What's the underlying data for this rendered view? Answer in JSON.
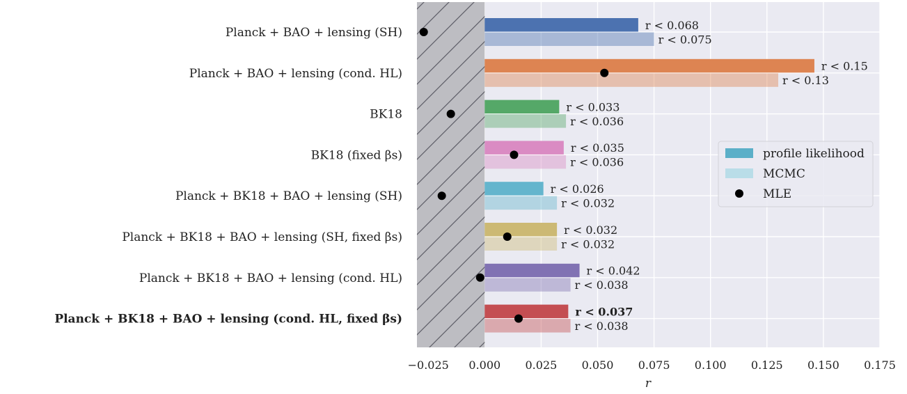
{
  "chart_data": {
    "type": "bar",
    "orientation": "horizontal",
    "xlabel": "r",
    "xlim": [
      -0.03,
      0.175
    ],
    "xticks": [
      -0.025,
      0.0,
      0.025,
      0.05,
      0.075,
      0.1,
      0.125,
      0.15,
      0.175
    ],
    "xtick_labels": [
      "−0.025",
      "0.000",
      "0.025",
      "0.050",
      "0.075",
      "0.100",
      "0.125",
      "0.150",
      "0.175"
    ],
    "excluded_region": [
      -0.03,
      0.0
    ],
    "grid": true,
    "legend_position": "center-right",
    "legend": [
      {
        "label": "profile likelihood",
        "kind": "bar",
        "color": "#5bafc8"
      },
      {
        "label": "MCMC",
        "kind": "bar",
        "color": "#b9dde8"
      },
      {
        "label": "MLE",
        "kind": "dot",
        "color": "#000000"
      }
    ],
    "rows": [
      {
        "label": "Planck + BAO + lensing (SH)",
        "bold": false,
        "color": "#4c72b0",
        "profile_limit": 0.068,
        "profile_text": "r < 0.068",
        "mcmc_limit": 0.075,
        "mcmc_text": "r < 0.075",
        "mle": -0.027
      },
      {
        "label": "Planck + BAO + lensing (cond. HL)",
        "bold": false,
        "color": "#dd8452",
        "profile_limit": 0.146,
        "profile_text": "r < 0.15",
        "mcmc_limit": 0.13,
        "mcmc_text": "r < 0.13",
        "mle": 0.053
      },
      {
        "label": "BK18",
        "bold": false,
        "color": "#55a868",
        "profile_limit": 0.033,
        "profile_text": "r < 0.033",
        "mcmc_limit": 0.036,
        "mcmc_text": "r < 0.036",
        "mle": -0.015
      },
      {
        "label": "BK18 (fixed βs)",
        "bold": false,
        "color": "#da8bc3",
        "profile_limit": 0.035,
        "profile_text": "r < 0.035",
        "mcmc_limit": 0.036,
        "mcmc_text": "r < 0.036",
        "mle": 0.013
      },
      {
        "label": "Planck + BK18 + BAO + lensing (SH)",
        "bold": false,
        "color": "#64b5cd",
        "profile_limit": 0.026,
        "profile_text": "r < 0.026",
        "mcmc_limit": 0.032,
        "mcmc_text": "r < 0.032",
        "mle": -0.019
      },
      {
        "label": "Planck + BK18 + BAO + lensing (SH, fixed βs)",
        "bold": false,
        "color": "#ccb974",
        "profile_limit": 0.032,
        "profile_text": "r < 0.032",
        "mcmc_limit": 0.032,
        "mcmc_text": "r < 0.032",
        "mle": 0.01
      },
      {
        "label": "Planck + BK18 + BAO + lensing (cond. HL)",
        "bold": false,
        "color": "#8172b3",
        "profile_limit": 0.042,
        "profile_text": "r < 0.042",
        "mcmc_limit": 0.038,
        "mcmc_text": "r < 0.038",
        "mle": -0.002
      },
      {
        "label": "Planck + BK18 + BAO + lensing (cond. HL, fixed βs)",
        "bold": true,
        "color": "#c44e52",
        "profile_limit": 0.037,
        "profile_text": "r < 0.037",
        "mcmc_limit": 0.038,
        "mcmc_text": "r < 0.038",
        "mle": 0.015
      }
    ]
  }
}
